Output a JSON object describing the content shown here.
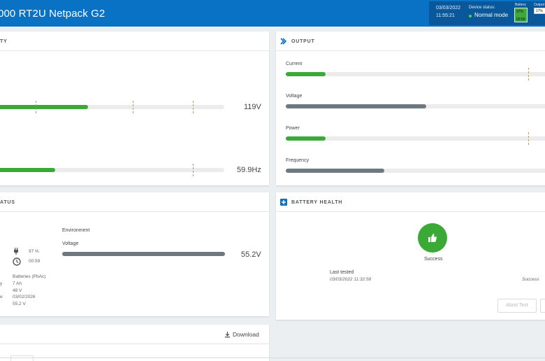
{
  "header": {
    "title": "000 RT2U Netpack G2",
    "date": "03/03/2022",
    "time": "11:55:21",
    "device_status_label": "Device status:",
    "device_status": "Normal mode",
    "battery_label": "Battery",
    "battery_pct": "97%",
    "battery_time": "00:59",
    "output_label": "Output",
    "output_pct": "17%"
  },
  "input_panel": {
    "title": "TY",
    "voltage_value": "119V",
    "voltage_level": 0.41,
    "frequency_value": "59.9Hz",
    "frequency_level": 0.27
  },
  "output_panel": {
    "title": "OUTPUT",
    "current_label": "Current",
    "current_level": 0.15,
    "voltage_label": "Voltage",
    "voltage_level": 0.53,
    "power_label": "Power",
    "power_level": 0.15,
    "frequency_label": "Frequency",
    "frequency_level": 0.37
  },
  "battery_status_panel": {
    "title": "ATUS",
    "charge_pct": "97 %",
    "runtime": "00:59",
    "labels": [
      "y",
      "e"
    ],
    "type": "Batteries (PbAc)",
    "capacity": "7 Ah",
    "nominal_voltage": "48 V",
    "replace_date": "03/02/2026",
    "measured_voltage": "55.2 V",
    "environment_label": "Environment",
    "env_voltage_label": "Voltage",
    "env_voltage_value": "55.2V",
    "env_voltage_level": 1.0
  },
  "battery_health_panel": {
    "title": "BATTERY HEALTH",
    "result": "Success",
    "last_tested_label": "Last tested",
    "last_tested_value": "03/03/2022 11:32:58",
    "last_result": "Success",
    "abort_button": "Abort Test"
  },
  "events_panel": {
    "download_label": "Download"
  },
  "colors": {
    "header_blue": "#0a72c4",
    "status_dark_blue": "#08589b",
    "ok_green": "#3aa935",
    "bar_gray": "#6e7880",
    "icon_blue": "#0a72c4"
  }
}
